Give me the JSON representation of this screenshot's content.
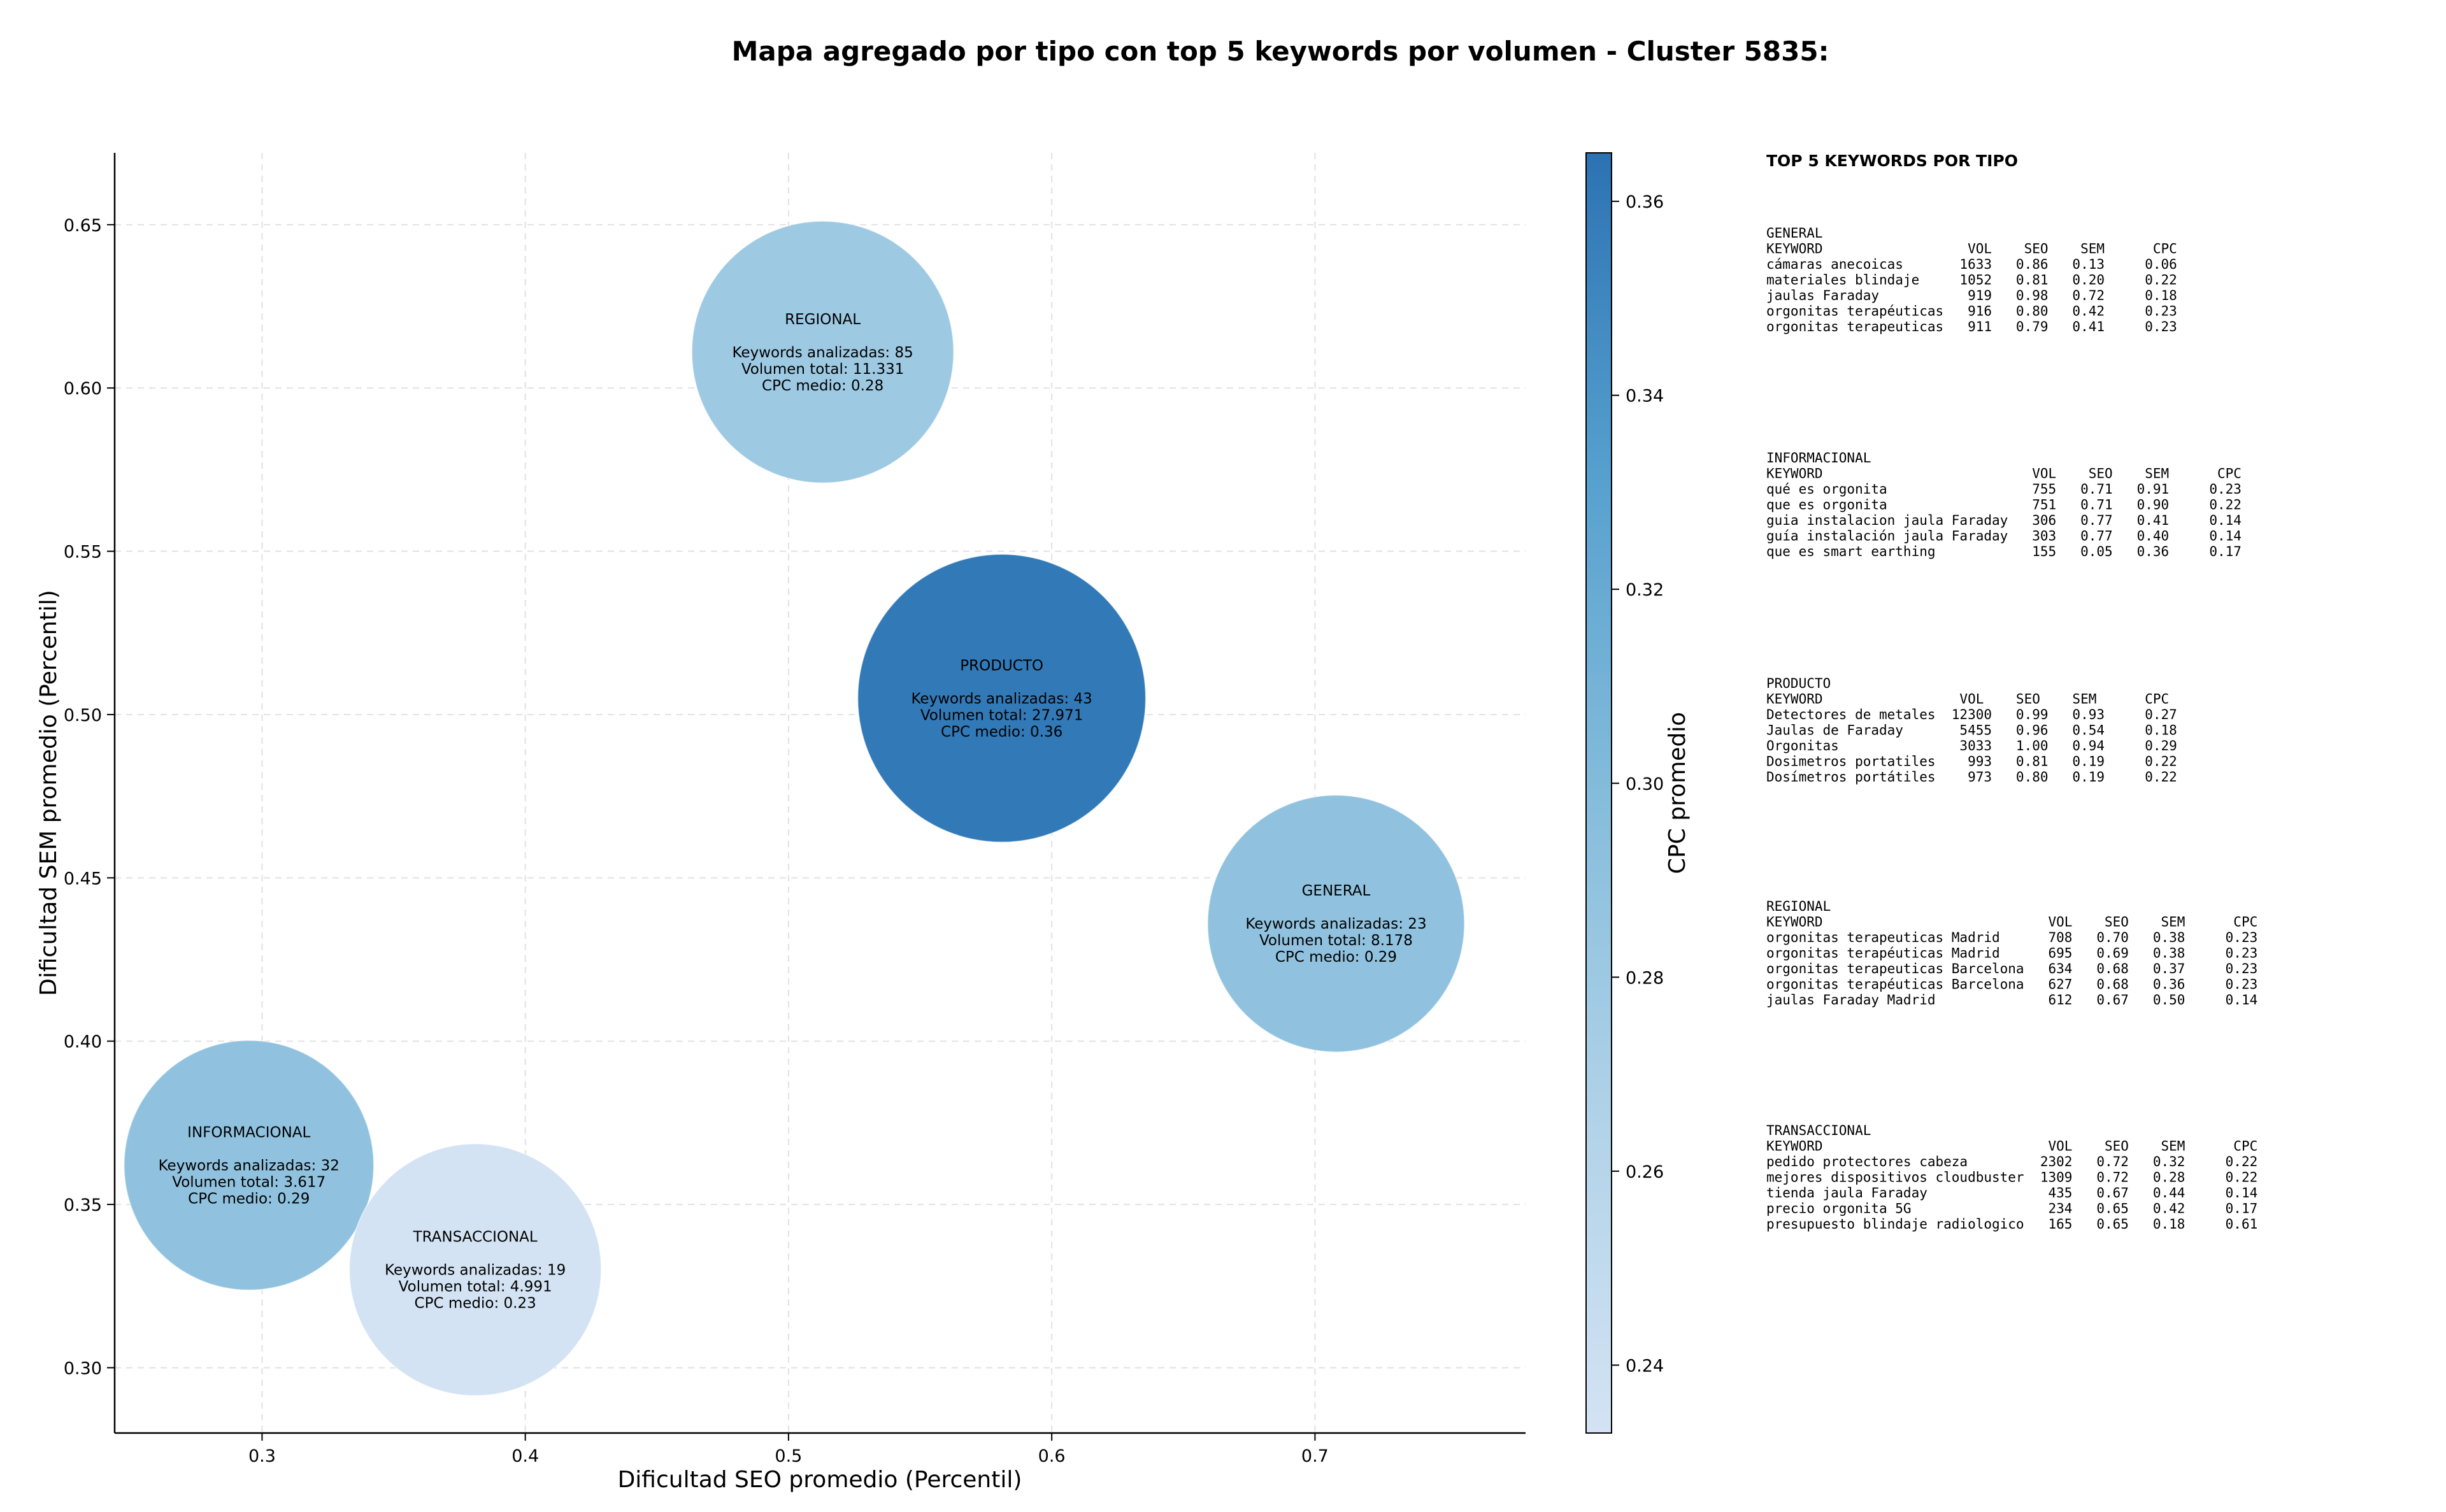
{
  "chart_data": {
    "type": "scatter",
    "subtype": "bubble",
    "title": "Mapa agregado por tipo con top 5 keywords por volumen - Cluster 5835:",
    "xlabel": "Dificultad SEO promedio (Percentil)",
    "ylabel": "Dificultad SEM promedio (Percentil)",
    "xlim": [
      0.244,
      0.78
    ],
    "ylim": [
      0.28,
      0.672
    ],
    "xticks": [
      0.3,
      0.4,
      0.5,
      0.6,
      0.7
    ],
    "yticks": [
      0.3,
      0.35,
      0.4,
      0.45,
      0.5,
      0.55,
      0.6,
      0.65
    ],
    "xtick_labels": [
      "0.3",
      "0.4",
      "0.5",
      "0.6",
      "0.7"
    ],
    "ytick_labels": [
      "0.30",
      "0.35",
      "0.40",
      "0.45",
      "0.50",
      "0.55",
      "0.60",
      "0.65"
    ],
    "grid": true,
    "colorbar": {
      "label": "CPC promedio",
      "range": [
        0.233,
        0.365
      ],
      "ticks": [
        0.24,
        0.26,
        0.28,
        0.3,
        0.32,
        0.34,
        0.36
      ],
      "tick_labels": [
        "0.24",
        "0.26",
        "0.28",
        "0.30",
        "0.32",
        "0.34",
        "0.36"
      ],
      "colormap": "Blues"
    },
    "points": [
      {
        "name": "REGIONAL",
        "x": 0.513,
        "y": 0.611,
        "cpc": 0.28,
        "keywords": 85,
        "volume": 11331,
        "lines": [
          "REGIONAL",
          "",
          "Keywords analizadas: 85",
          "Volumen total: 11.331",
          "CPC medio: 0.28"
        ]
      },
      {
        "name": "PRODUCTO",
        "x": 0.581,
        "y": 0.505,
        "cpc": 0.36,
        "keywords": 43,
        "volume": 27971,
        "lines": [
          "PRODUCTO",
          "",
          "Keywords analizadas: 43",
          "Volumen total: 27.971",
          "CPC medio: 0.36"
        ]
      },
      {
        "name": "GENERAL",
        "x": 0.708,
        "y": 0.436,
        "cpc": 0.29,
        "keywords": 23,
        "volume": 8178,
        "lines": [
          "GENERAL",
          "",
          "Keywords analizadas: 23",
          "Volumen total: 8.178",
          "CPC medio: 0.29"
        ]
      },
      {
        "name": "INFORMACIONAL",
        "x": 0.295,
        "y": 0.362,
        "cpc": 0.29,
        "keywords": 32,
        "volume": 3617,
        "lines": [
          "INFORMACIONAL",
          "",
          "Keywords analizadas: 32",
          "Volumen total: 3.617",
          "CPC medio: 0.29"
        ]
      },
      {
        "name": "TRANSACCIONAL",
        "x": 0.381,
        "y": 0.33,
        "cpc": 0.23,
        "keywords": 19,
        "volume": 4991,
        "lines": [
          "TRANSACCIONAL",
          "",
          "Keywords analizadas: 19",
          "Volumen total: 4.991",
          "CPC medio: 0.23"
        ]
      }
    ]
  },
  "side_panel": {
    "title": "TOP 5 KEYWORDS POR TIPO",
    "blocks": [
      {
        "lines": [
          "GENERAL",
          "KEYWORD                  VOL    SEO    SEM      CPC",
          "cámaras anecoicas       1633   0.86   0.13     0.06",
          "materiales blindaje     1052   0.81   0.20     0.22",
          "jaulas Faraday           919   0.98   0.72     0.18",
          "orgonitas terapéuticas   916   0.80   0.42     0.23",
          "orgonitas terapeuticas   911   0.79   0.41     0.23"
        ]
      },
      {
        "lines": [
          "INFORMACIONAL",
          "KEYWORD                          VOL    SEO    SEM      CPC",
          "qué es orgonita                  755   0.71   0.91     0.23",
          "que es orgonita                  751   0.71   0.90     0.22",
          "guia instalacion jaula Faraday   306   0.77   0.41     0.14",
          "guía instalación jaula Faraday   303   0.77   0.40     0.14",
          "que es smart earthing            155   0.05   0.36     0.17"
        ]
      },
      {
        "lines": [
          "PRODUCTO",
          "KEYWORD                 VOL    SEO    SEM      CPC",
          "Detectores de metales  12300   0.99   0.93     0.27",
          "Jaulas de Faraday       5455   0.96   0.54     0.18",
          "Orgonitas               3033   1.00   0.94     0.29",
          "Dosimetros portatiles    993   0.81   0.19     0.22",
          "Dosímetros portátiles    973   0.80   0.19     0.22"
        ]
      },
      {
        "lines": [
          "REGIONAL",
          "KEYWORD                            VOL    SEO    SEM      CPC",
          "orgonitas terapeuticas Madrid      708   0.70   0.38     0.23",
          "orgonitas terapéuticas Madrid      695   0.69   0.38     0.23",
          "orgonitas terapeuticas Barcelona   634   0.68   0.37     0.23",
          "orgonitas terapéuticas Barcelona   627   0.68   0.36     0.23",
          "jaulas Faraday Madrid              612   0.67   0.50     0.14"
        ]
      },
      {
        "lines": [
          "TRANSACCIONAL",
          "KEYWORD                            VOL    SEO    SEM      CPC",
          "pedido protectores cabeza         2302   0.72   0.32     0.22",
          "mejores dispositivos cloudbuster  1309   0.72   0.28     0.22",
          "tienda jaula Faraday               435   0.67   0.44     0.14",
          "precio orgonita 5G                 234   0.65   0.42     0.17",
          "presupuesto blindaje radiologico   165   0.65   0.18     0.61"
        ]
      }
    ]
  }
}
